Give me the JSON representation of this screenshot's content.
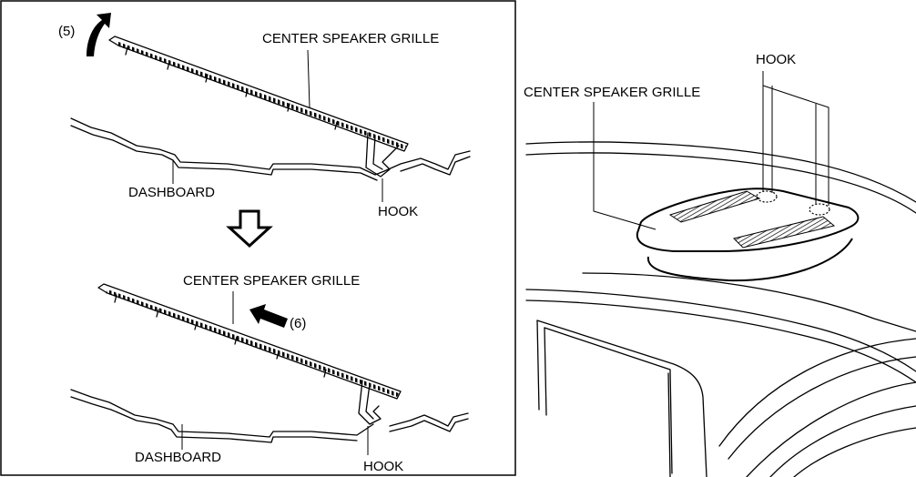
{
  "left_panel": {
    "top": {
      "step_label": "(5)",
      "grille_label": "CENTER SPEAKER GRILLE",
      "dashboard_label": "DASHBOARD",
      "hook_label": "HOOK"
    },
    "bottom": {
      "step_label": "(6)",
      "grille_label": "CENTER SPEAKER GRILLE",
      "dashboard_label": "DASHBOARD",
      "hook_label": "HOOK"
    }
  },
  "right_panel": {
    "grille_label": "CENTER SPEAKER GRILLE",
    "hook_label": "HOOK"
  },
  "icons": {
    "rotate_arrow": "curved-up-arrow-icon",
    "push_arrow": "left-arrow-icon",
    "step_arrow": "down-hollow-arrow-icon"
  }
}
